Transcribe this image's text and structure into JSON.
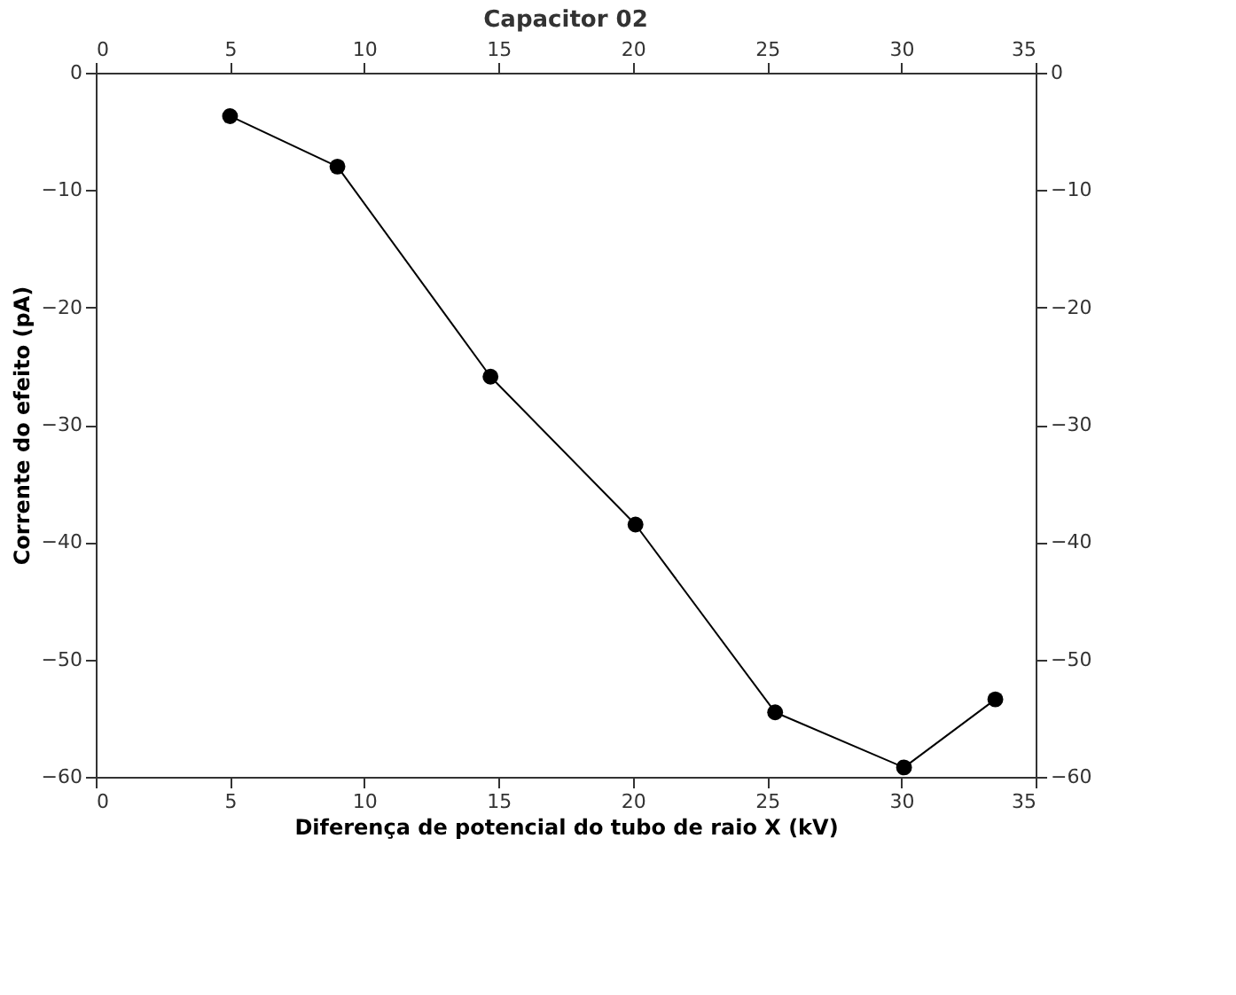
{
  "chart_data": {
    "type": "line",
    "title": "Capacitor 02",
    "xlabel": "Diferença de potencial do tubo de raio X (kV)",
    "ylabel": "Corrente do efeito (pA)",
    "x": [
      5.0,
      9.0,
      14.7,
      20.1,
      25.3,
      30.1,
      33.5
    ],
    "series": [
      {
        "color": "#000000",
        "values": [
          -3.7,
          -8.0,
          -25.9,
          -38.5,
          -54.5,
          -59.2,
          -53.4
        ]
      }
    ],
    "xlim": [
      0,
      35
    ],
    "xticks": [
      0,
      5,
      10,
      15,
      20,
      25,
      30,
      35
    ],
    "x2lim": [
      0,
      35
    ],
    "x2ticks": [
      0,
      5,
      10,
      15,
      20,
      25,
      30,
      35
    ],
    "ylim": [
      -60,
      0
    ],
    "yticks": [
      -60,
      -50,
      -40,
      -30,
      -20,
      -10,
      0
    ],
    "y2lim": [
      -60,
      0
    ],
    "y2ticks": [
      -60,
      -50,
      -40,
      -30,
      -20,
      -10,
      0
    ],
    "marker": "circle",
    "line_style": "solid",
    "grid": false,
    "legend": false
  }
}
